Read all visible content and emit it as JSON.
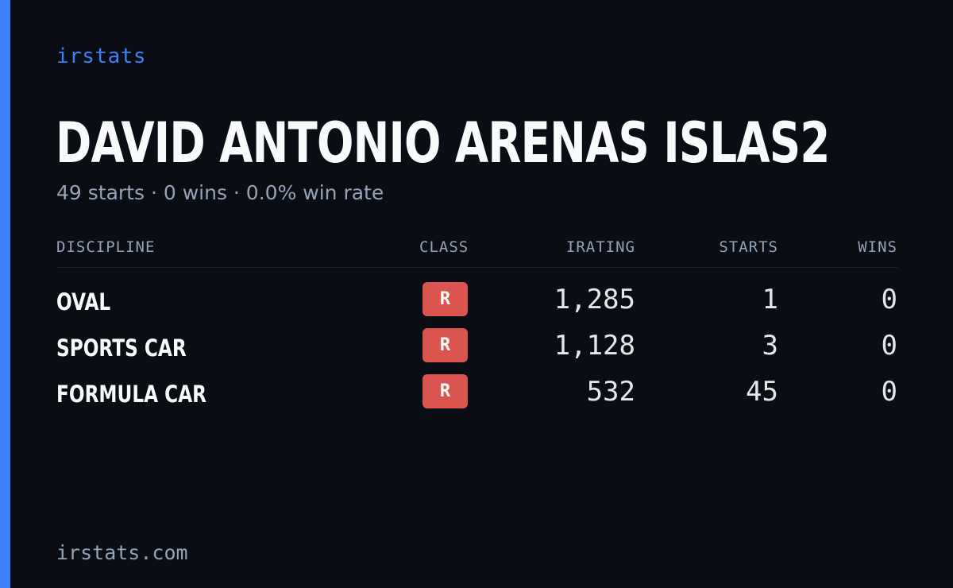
{
  "brand": "irstats",
  "player": {
    "name": "DAVID ANTONIO ARENAS ISLAS2",
    "summary": "49 starts · 0 wins · 0.0% win rate"
  },
  "table": {
    "headers": {
      "discipline": "DISCIPLINE",
      "class": "CLASS",
      "irating": "IRATING",
      "starts": "STARTS",
      "wins": "WINS"
    },
    "rows": [
      {
        "discipline": "OVAL",
        "class": "R",
        "irating": "1,285",
        "starts": "1",
        "wins": "0"
      },
      {
        "discipline": "SPORTS CAR",
        "class": "R",
        "irating": "1,128",
        "starts": "3",
        "wins": "0"
      },
      {
        "discipline": "FORMULA CAR",
        "class": "R",
        "irating": "532",
        "starts": "45",
        "wins": "0"
      }
    ]
  },
  "footer": "irstats.com",
  "colors": {
    "accent": "#3b82f6",
    "background": "#0b0d14",
    "class_r_badge": "#dc5450"
  }
}
